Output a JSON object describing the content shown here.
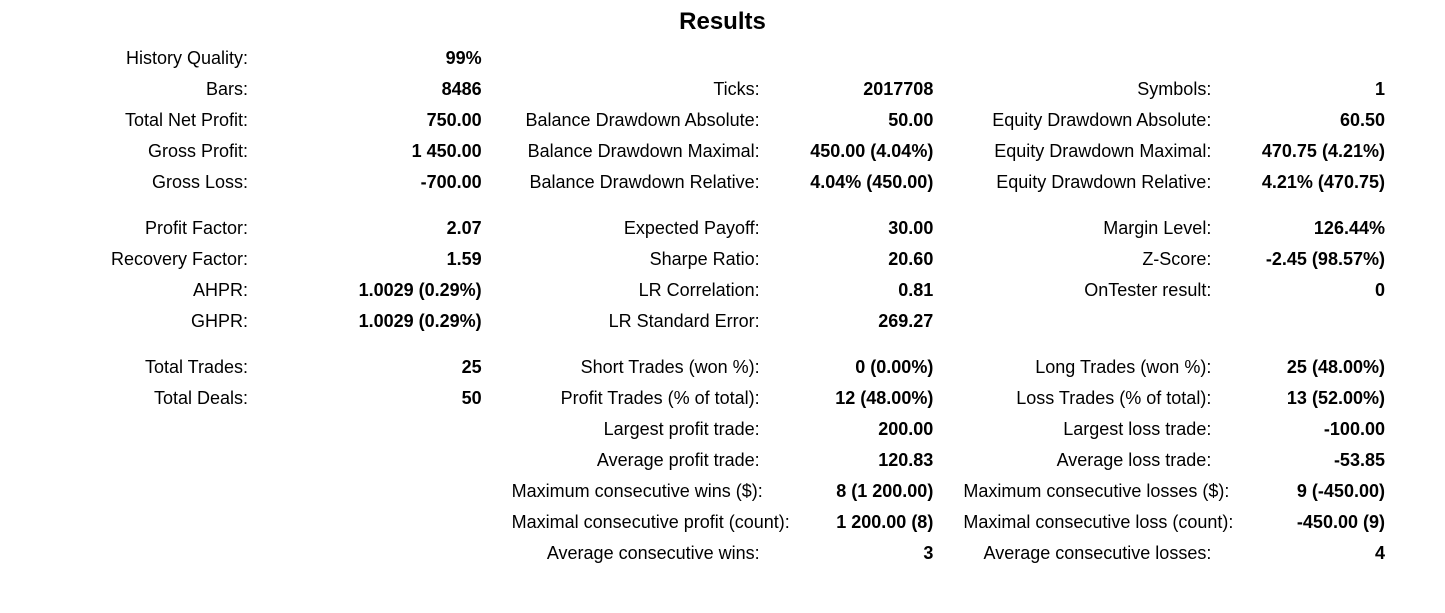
{
  "title": "Results",
  "block1": {
    "col1": [
      {
        "label": "History Quality:",
        "value": "99%"
      },
      {
        "label": "Bars:",
        "value": "8486"
      },
      {
        "label": "Total Net Profit:",
        "value": "750.00"
      },
      {
        "label": "Gross Profit:",
        "value": "1 450.00"
      },
      {
        "label": "Gross Loss:",
        "value": "-700.00"
      }
    ],
    "col2": [
      {
        "label": "",
        "value": ""
      },
      {
        "label": "Ticks:",
        "value": "2017708"
      },
      {
        "label": "Balance Drawdown Absolute:",
        "value": "50.00"
      },
      {
        "label": "Balance Drawdown Maximal:",
        "value": "450.00 (4.04%)"
      },
      {
        "label": "Balance Drawdown Relative:",
        "value": "4.04% (450.00)"
      }
    ],
    "col3": [
      {
        "label": "",
        "value": ""
      },
      {
        "label": "Symbols:",
        "value": "1"
      },
      {
        "label": "Equity Drawdown Absolute:",
        "value": "60.50"
      },
      {
        "label": "Equity Drawdown Maximal:",
        "value": "470.75 (4.21%)"
      },
      {
        "label": "Equity Drawdown Relative:",
        "value": "4.21% (470.75)"
      }
    ]
  },
  "block2": {
    "col1": [
      {
        "label": "Profit Factor:",
        "value": "2.07"
      },
      {
        "label": "Recovery Factor:",
        "value": "1.59"
      },
      {
        "label": "AHPR:",
        "value": "1.0029 (0.29%)"
      },
      {
        "label": "GHPR:",
        "value": "1.0029 (0.29%)"
      }
    ],
    "col2": [
      {
        "label": "Expected Payoff:",
        "value": "30.00"
      },
      {
        "label": "Sharpe Ratio:",
        "value": "20.60"
      },
      {
        "label": "LR Correlation:",
        "value": "0.81"
      },
      {
        "label": "LR Standard Error:",
        "value": "269.27"
      }
    ],
    "col3": [
      {
        "label": "Margin Level:",
        "value": "126.44%"
      },
      {
        "label": "Z-Score:",
        "value": "-2.45 (98.57%)"
      },
      {
        "label": "OnTester result:",
        "value": "0"
      },
      {
        "label": "",
        "value": ""
      }
    ]
  },
  "block3": {
    "col1": [
      {
        "label": "Total Trades:",
        "value": "25"
      },
      {
        "label": "Total Deals:",
        "value": "50"
      },
      {
        "label": "",
        "value": ""
      },
      {
        "label": "",
        "value": ""
      },
      {
        "label": "",
        "value": ""
      },
      {
        "label": "",
        "value": ""
      },
      {
        "label": "",
        "value": ""
      }
    ],
    "col2": [
      {
        "label": "Short Trades (won %):",
        "value": "0 (0.00%)"
      },
      {
        "label": "Profit Trades (% of total):",
        "value": "12 (48.00%)"
      },
      {
        "label": "Largest profit trade:",
        "value": "200.00"
      },
      {
        "label": "Average profit trade:",
        "value": "120.83"
      },
      {
        "label": "Maximum consecutive wins ($):",
        "value": "8 (1 200.00)"
      },
      {
        "label": "Maximal consecutive profit (count):",
        "value": "1 200.00 (8)"
      },
      {
        "label": "Average consecutive wins:",
        "value": "3"
      }
    ],
    "col3": [
      {
        "label": "Long Trades (won %):",
        "value": "25 (48.00%)"
      },
      {
        "label": "Loss Trades (% of total):",
        "value": "13 (52.00%)"
      },
      {
        "label": "Largest loss trade:",
        "value": "-100.00"
      },
      {
        "label": "Average loss trade:",
        "value": "-53.85"
      },
      {
        "label": "Maximum consecutive losses ($):",
        "value": "9 (-450.00)"
      },
      {
        "label": "Maximal consecutive loss (count):",
        "value": "-450.00 (9)"
      },
      {
        "label": "Average consecutive losses:",
        "value": "4"
      }
    ]
  }
}
